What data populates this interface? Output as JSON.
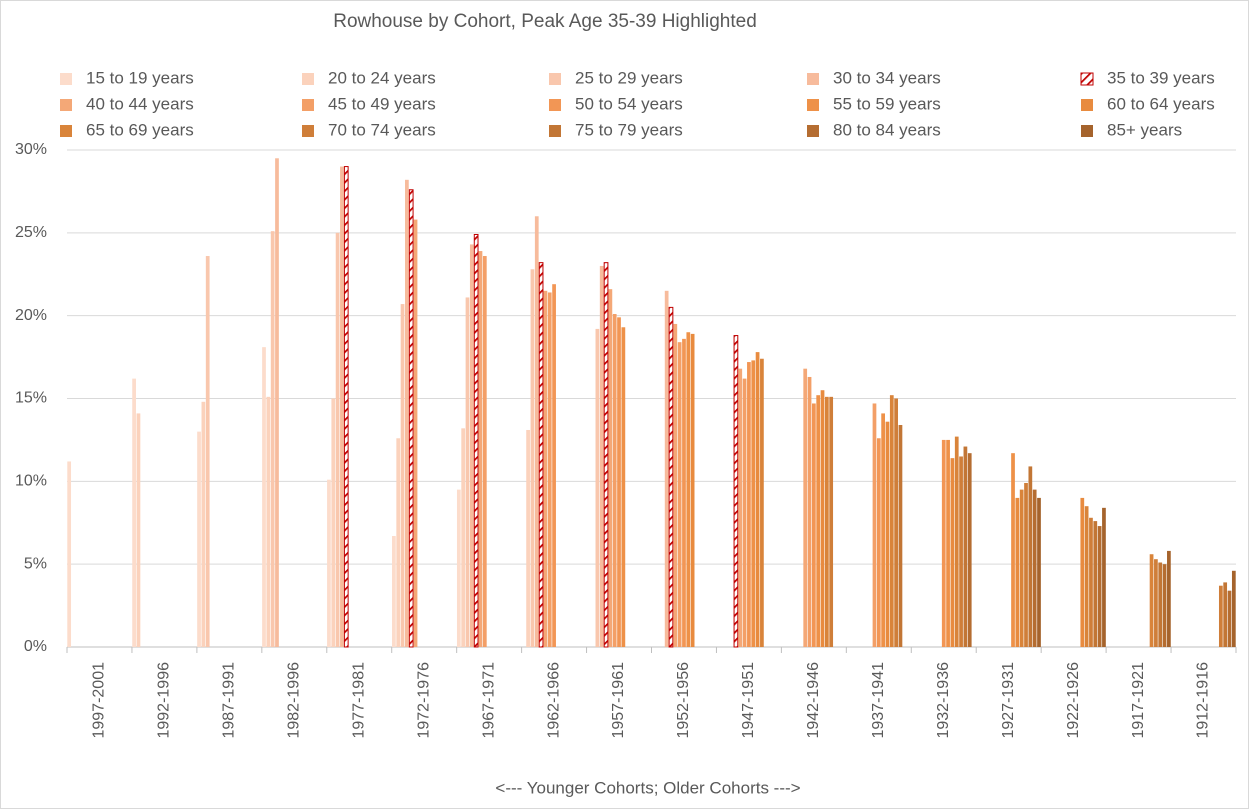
{
  "chart_data": {
    "type": "bar",
    "title": "Rowhouse by Cohort, Peak Age 35-39 Highlighted",
    "xlabel": "<--- Younger Cohorts; Older Cohorts --->",
    "categories": [
      "1997-2001",
      "1992-1996",
      "1987-1991",
      "1982-1996",
      "1977-1981",
      "1972-1976",
      "1967-1971",
      "1962-1966",
      "1957-1961",
      "1952-1956",
      "1947-1951",
      "1942-1946",
      "1937-1941",
      "1932-1936",
      "1927-1931",
      "1922-1926",
      "1917-1921",
      "1912-1916"
    ],
    "ylim": [
      0,
      30
    ],
    "yticks": [
      {
        "value": 0,
        "label": "0%"
      },
      {
        "value": 5,
        "label": "5%"
      },
      {
        "value": 10,
        "label": "10%"
      },
      {
        "value": 15,
        "label": "15%"
      },
      {
        "value": 20,
        "label": "20%"
      },
      {
        "value": 25,
        "label": "25%"
      },
      {
        "value": 30,
        "label": "30%"
      }
    ],
    "grid": true,
    "legend": "top",
    "series": [
      {
        "name": "15 to 19 years",
        "color": "#fcdccb",
        "values": [
          11.2,
          16.2,
          13.0,
          18.1,
          10.1,
          6.7,
          9.5,
          null,
          null,
          null,
          null,
          null,
          null,
          null,
          null,
          null,
          null,
          null
        ]
      },
      {
        "name": "20 to 24 years",
        "color": "#fbd2bc",
        "values": [
          null,
          14.1,
          14.8,
          15.1,
          15.0,
          12.6,
          13.2,
          13.1,
          null,
          null,
          null,
          null,
          null,
          null,
          null,
          null,
          null,
          null
        ]
      },
      {
        "name": "25 to 29 years",
        "color": "#f9c7ad",
        "values": [
          null,
          null,
          23.6,
          25.1,
          25.0,
          20.7,
          21.1,
          22.8,
          19.2,
          null,
          null,
          null,
          null,
          null,
          null,
          null,
          null,
          null
        ]
      },
      {
        "name": "30 to 34 years",
        "color": "#f7bb9c",
        "values": [
          null,
          null,
          null,
          29.5,
          29.0,
          28.2,
          24.3,
          26.0,
          23.0,
          21.5,
          null,
          null,
          null,
          null,
          null,
          null,
          null,
          null
        ]
      },
      {
        "name": "35 to 39 years",
        "color": "#c00000",
        "hatched": true,
        "values": [
          null,
          null,
          null,
          null,
          29.0,
          27.6,
          24.9,
          23.2,
          23.2,
          20.5,
          18.8,
          null,
          null,
          null,
          null,
          null,
          null,
          null
        ]
      },
      {
        "name": "40 to 44 years",
        "color": "#f4a877",
        "values": [
          null,
          null,
          null,
          null,
          null,
          25.8,
          23.9,
          21.5,
          21.6,
          19.5,
          16.8,
          16.8,
          null,
          null,
          null,
          null,
          null,
          null
        ]
      },
      {
        "name": "45 to 49 years",
        "color": "#f39f67",
        "values": [
          null,
          null,
          null,
          null,
          null,
          null,
          23.6,
          21.4,
          20.1,
          18.4,
          16.2,
          16.3,
          14.7,
          null,
          null,
          null,
          null,
          null
        ]
      },
      {
        "name": "50 to 54 years",
        "color": "#f29655",
        "values": [
          null,
          null,
          null,
          null,
          null,
          null,
          null,
          21.9,
          19.9,
          18.6,
          17.2,
          14.7,
          12.6,
          12.5,
          null,
          null,
          null,
          null
        ]
      },
      {
        "name": "55 to 59 years",
        "color": "#ee9148",
        "values": [
          null,
          null,
          null,
          null,
          null,
          null,
          null,
          null,
          19.3,
          19.0,
          17.3,
          15.2,
          14.1,
          12.5,
          11.7,
          null,
          null,
          null
        ]
      },
      {
        "name": "60 to 64 years",
        "color": "#e88b3f",
        "values": [
          null,
          null,
          null,
          null,
          null,
          null,
          null,
          null,
          null,
          18.9,
          17.8,
          15.5,
          13.6,
          11.4,
          9.0,
          9.0,
          null,
          null
        ]
      },
      {
        "name": "65 to 69 years",
        "color": "#d9843a",
        "values": [
          null,
          null,
          null,
          null,
          null,
          null,
          null,
          null,
          null,
          null,
          17.4,
          15.1,
          15.2,
          12.7,
          9.5,
          8.5,
          5.6,
          null
        ]
      },
      {
        "name": "70 to 74 years",
        "color": "#cf7e39",
        "values": [
          null,
          null,
          null,
          null,
          null,
          null,
          null,
          null,
          null,
          null,
          null,
          15.1,
          15.0,
          11.5,
          9.9,
          7.8,
          5.3,
          3.7
        ]
      },
      {
        "name": "75 to 79 years",
        "color": "#c27635",
        "values": [
          null,
          null,
          null,
          null,
          null,
          null,
          null,
          null,
          null,
          null,
          null,
          null,
          13.4,
          12.1,
          10.9,
          7.6,
          5.1,
          3.9
        ]
      },
      {
        "name": "80 to 84 years",
        "color": "#b56d31",
        "values": [
          null,
          null,
          null,
          null,
          null,
          null,
          null,
          null,
          null,
          null,
          null,
          null,
          null,
          11.7,
          9.5,
          7.3,
          5.0,
          3.4
        ]
      },
      {
        "name": "85+ years",
        "color": "#a5632c",
        "values": [
          null,
          null,
          null,
          null,
          null,
          null,
          null,
          null,
          null,
          null,
          null,
          null,
          null,
          null,
          9.0,
          8.4,
          5.8,
          4.6
        ]
      }
    ]
  }
}
